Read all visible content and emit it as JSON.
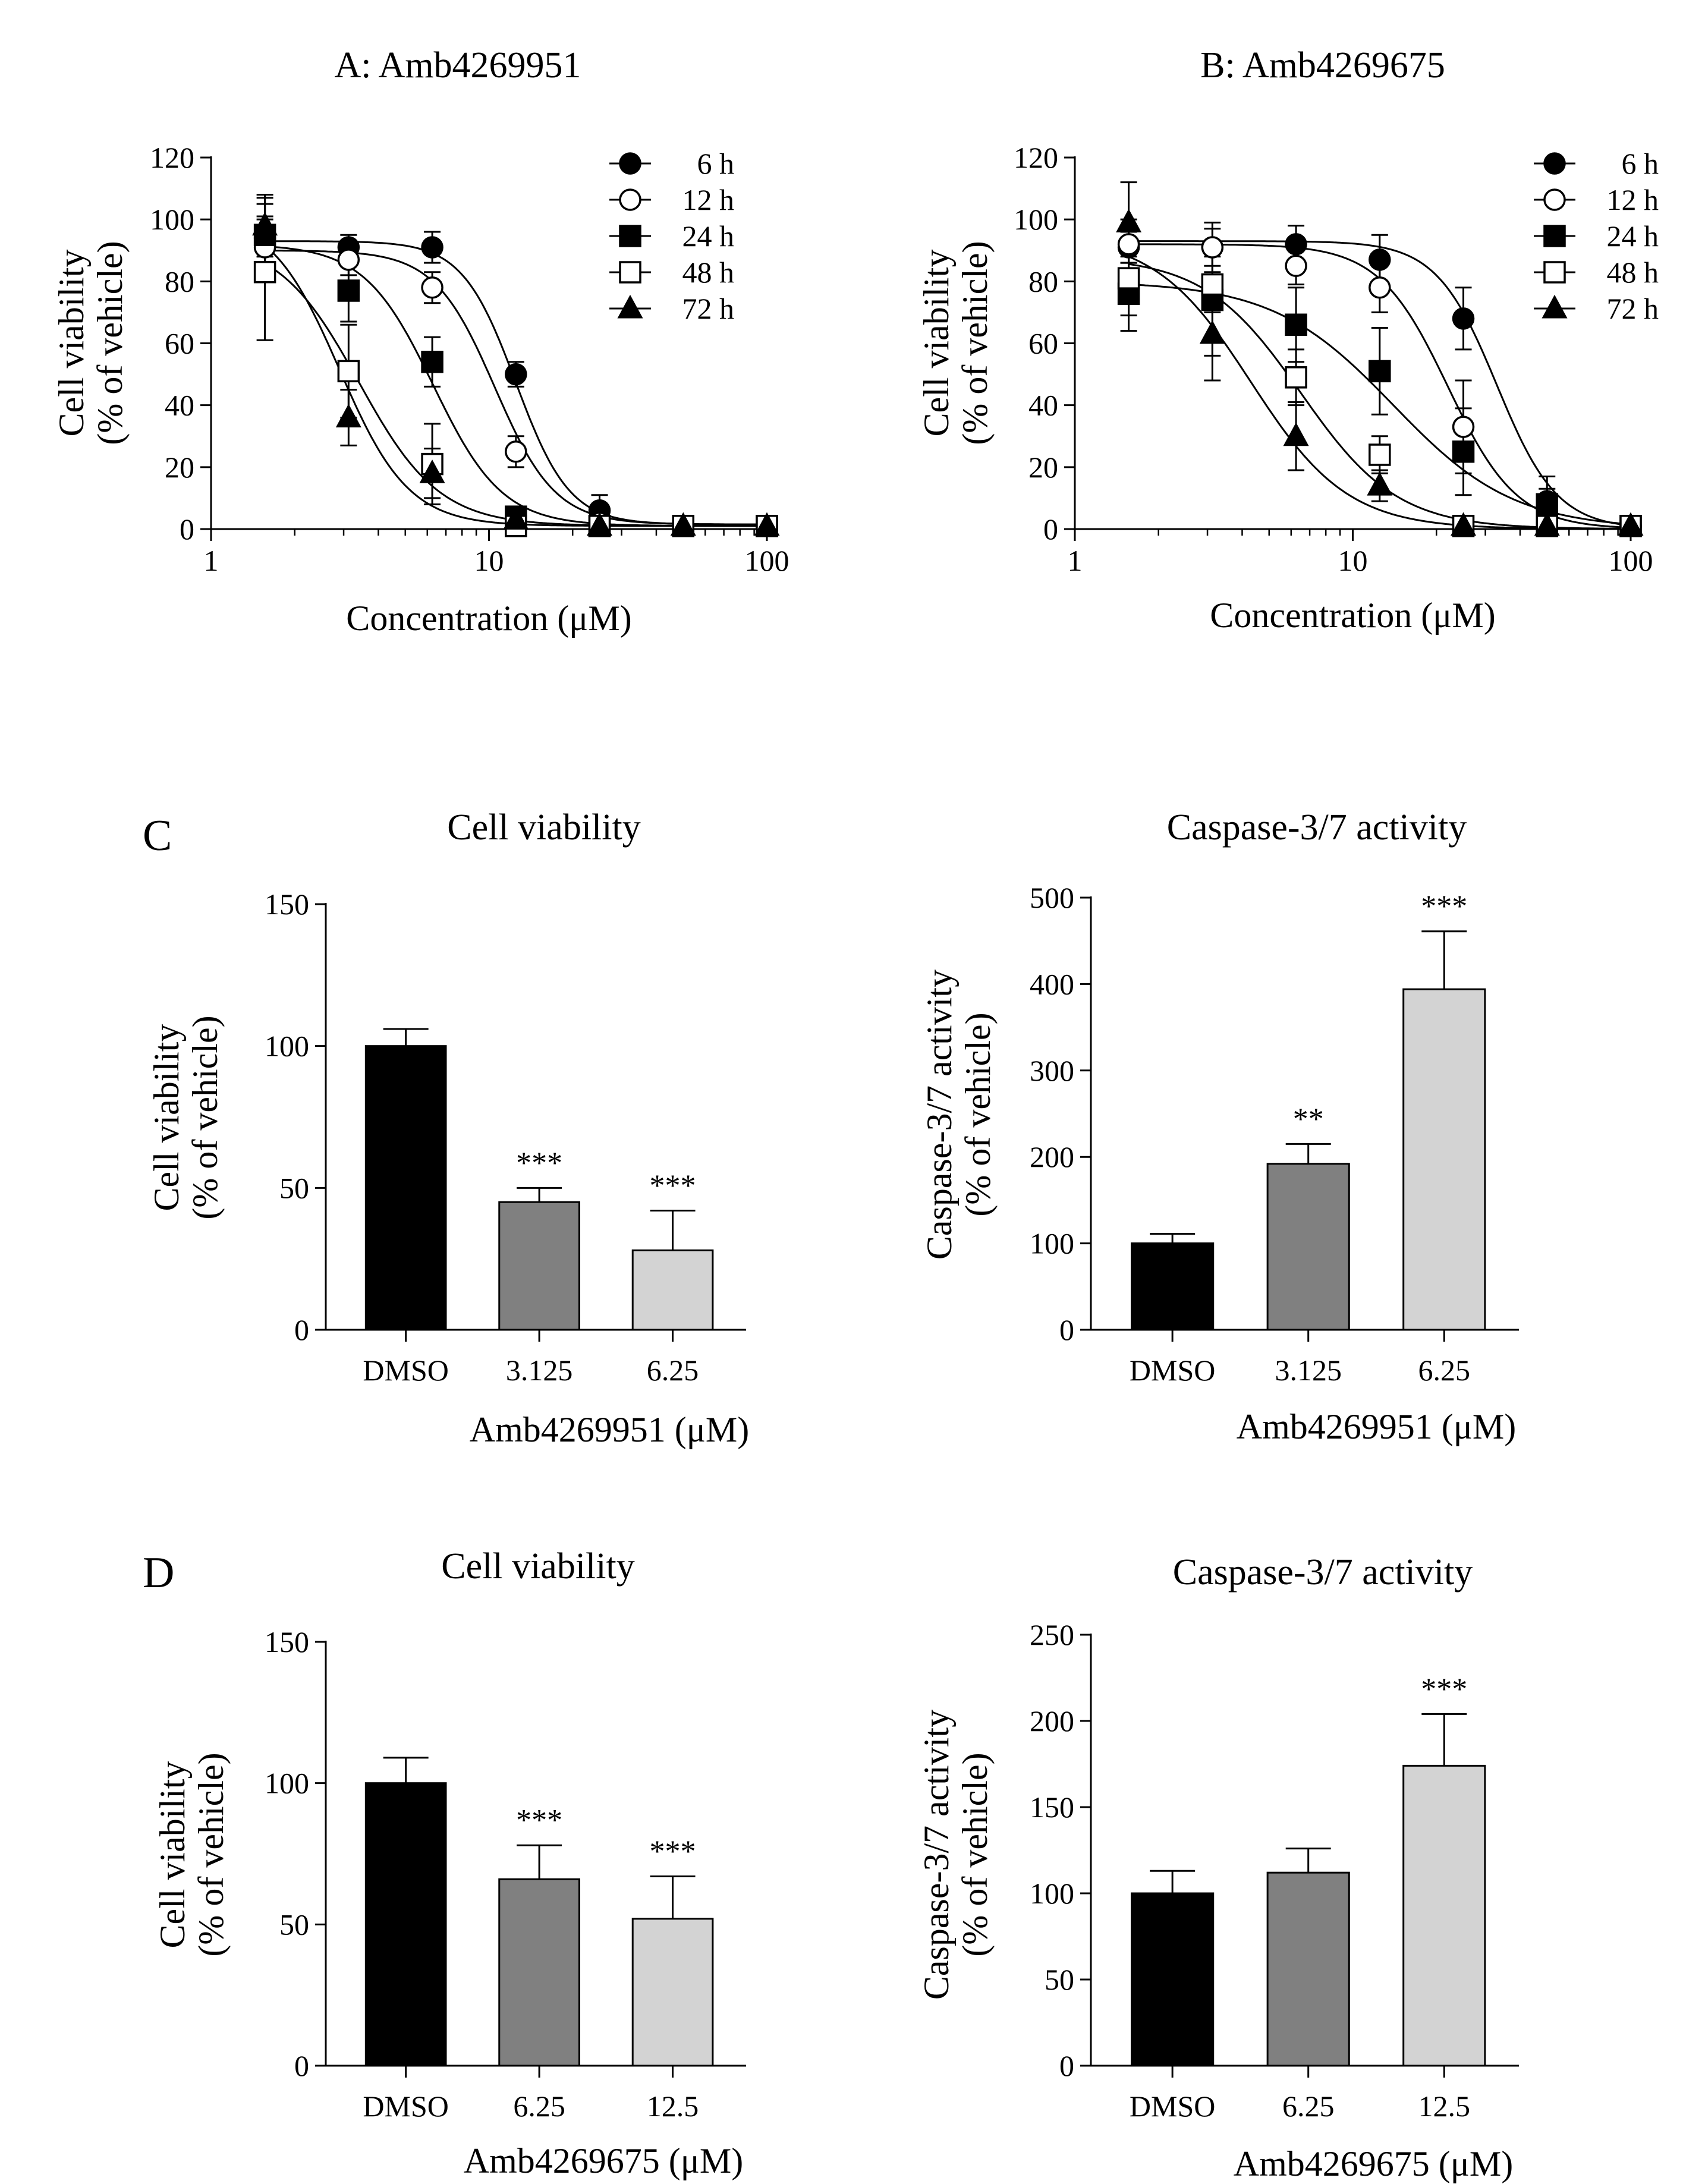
{
  "chart_data": [
    {
      "id": "A",
      "type": "line",
      "title": "A: Amb4269951",
      "xlabel": "Concentration (μM)",
      "ylabel": [
        "Cell viability",
        "(% of vehicle)"
      ],
      "xscale": "log",
      "xlim": [
        1,
        100
      ],
      "ylim": [
        0,
        120
      ],
      "xticks": [
        1,
        10,
        100
      ],
      "xtick_labels": [
        "1",
        "10",
        "100"
      ],
      "yticks": [
        0,
        20,
        40,
        60,
        80,
        100,
        120
      ],
      "ytick_labels": [
        "0",
        "20",
        "40",
        "60",
        "80",
        "100",
        "120"
      ],
      "legend_position": "top-right",
      "x": [
        1.5625,
        3.125,
        6.25,
        12.5,
        25,
        50,
        100
      ],
      "series": [
        {
          "name": "6 h",
          "marker": "filled-circle",
          "values": [
            94,
            91,
            91,
            50,
            6,
            1,
            1
          ],
          "errors": [
            6,
            4,
            5,
            4,
            5,
            1,
            1
          ],
          "fit": {
            "top": 93,
            "bottom": 1.5,
            "ic50": 12.5,
            "hill": 4.5
          }
        },
        {
          "name": "12 h",
          "marker": "open-circle",
          "values": [
            91,
            87,
            78,
            25,
            2,
            1,
            1
          ],
          "errors": [
            10,
            5,
            5,
            5,
            2,
            1,
            1
          ],
          "fit": {
            "top": 90,
            "bottom": 1.5,
            "ic50": 10.5,
            "hill": 4
          }
        },
        {
          "name": "24 h",
          "marker": "filled-square",
          "values": [
            95,
            77,
            54,
            4,
            1,
            1,
            1
          ],
          "errors": [
            12,
            10,
            8,
            3,
            1,
            1,
            1
          ],
          "fit": {
            "top": 92,
            "bottom": 1,
            "ic50": 6.3,
            "hill": 3.5
          }
        },
        {
          "name": "48 h",
          "marker": "open-square",
          "values": [
            83,
            51,
            21,
            1,
            1,
            1,
            1
          ],
          "errors": [
            22,
            15,
            13,
            1,
            1,
            1,
            1
          ],
          "fit": {
            "top": 94,
            "bottom": 1,
            "ic50": 3.4,
            "hill": 3
          }
        },
        {
          "name": "72 h",
          "marker": "filled-triangle",
          "values": [
            98,
            36,
            18,
            3,
            1,
            1,
            1
          ],
          "errors": [
            10,
            9,
            8,
            2,
            1,
            1,
            1
          ],
          "fit": {
            "top": 102,
            "bottom": 1,
            "ic50": 2.9,
            "hill": 3.5
          }
        }
      ]
    },
    {
      "id": "B",
      "type": "line",
      "title": "B: Amb4269675",
      "xlabel": "Concentration (μM)",
      "ylabel": [
        "Cell viability",
        "(% of vehicle)"
      ],
      "xscale": "log",
      "xlim": [
        1,
        100
      ],
      "ylim": [
        0,
        120
      ],
      "xticks": [
        1,
        10,
        100
      ],
      "xtick_labels": [
        "1",
        "10",
        "100"
      ],
      "yticks": [
        0,
        20,
        40,
        60,
        80,
        100,
        120
      ],
      "ytick_labels": [
        "0",
        "20",
        "40",
        "60",
        "80",
        "100",
        "120"
      ],
      "legend_position": "top-right",
      "x": [
        1.5625,
        3.125,
        6.25,
        12.5,
        25,
        50,
        100
      ],
      "series": [
        {
          "name": "6 h",
          "marker": "filled-circle",
          "values": [
            91,
            91,
            92,
            87,
            68,
            9,
            1
          ],
          "errors": [
            5,
            6,
            6,
            8,
            10,
            8,
            1
          ],
          "fit": {
            "top": 93,
            "bottom": 0,
            "ic50": 33,
            "hill": 4
          }
        },
        {
          "name": "12 h",
          "marker": "open-circle",
          "values": [
            92,
            91,
            85,
            78,
            33,
            1,
            1
          ],
          "errors": [
            8,
            8,
            6,
            8,
            15,
            2,
            1
          ],
          "fit": {
            "top": 92,
            "bottom": 0,
            "ic50": 22,
            "hill": 3.5
          }
        },
        {
          "name": "24 h",
          "marker": "filled-square",
          "values": [
            76,
            74,
            66,
            51,
            25,
            8,
            1
          ],
          "errors": [
            12,
            18,
            12,
            14,
            14,
            5,
            1
          ],
          "fit": {
            "top": 80,
            "bottom": 0,
            "ic50": 14,
            "hill": 2
          }
        },
        {
          "name": "48 h",
          "marker": "open-square",
          "values": [
            81,
            79,
            49,
            24,
            1,
            1,
            1
          ],
          "errors": [
            12,
            9,
            9,
            6,
            1,
            1,
            1
          ],
          "fit": {
            "top": 88,
            "bottom": 0,
            "ic50": 6.5,
            "hill": 2.5
          }
        },
        {
          "name": "72 h",
          "marker": "filled-triangle",
          "values": [
            99,
            63,
            30,
            14,
            1,
            1,
            1
          ],
          "errors": [
            13,
            15,
            11,
            5,
            1,
            1,
            1
          ],
          "fit": {
            "top": 95,
            "bottom": 0,
            "ic50": 4.3,
            "hill": 2.5
          }
        }
      ]
    },
    {
      "id": "C-left",
      "type": "bar",
      "panel_letter": "C",
      "title": "Cell viability",
      "xlabel": "Amb4269951 (μM)",
      "ylabel": [
        "Cell viability",
        "(% of vehicle)"
      ],
      "ylim": [
        0,
        150
      ],
      "yticks": [
        0,
        50,
        100,
        150
      ],
      "ytick_labels": [
        "0",
        "50",
        "100",
        "150"
      ],
      "categories": [
        "DMSO",
        "3.125",
        "6.25"
      ],
      "values": [
        100,
        45,
        28
      ],
      "errors": [
        6,
        5,
        14
      ],
      "bar_colors": [
        "#000000",
        "#808080",
        "#d3d3d3"
      ],
      "significance": [
        "",
        "***",
        "***"
      ]
    },
    {
      "id": "C-right",
      "type": "bar",
      "title": "Caspase-3/7 activity",
      "xlabel": "Amb4269951 (μM)",
      "ylabel": [
        "Caspase-3/7 activity",
        "(% of vehicle)"
      ],
      "ylim": [
        0,
        500
      ],
      "yticks": [
        0,
        100,
        200,
        300,
        400,
        500
      ],
      "ytick_labels": [
        "0",
        "100",
        "200",
        "300",
        "400",
        "500"
      ],
      "categories": [
        "DMSO",
        "3.125",
        "6.25"
      ],
      "values": [
        100,
        192,
        394
      ],
      "errors": [
        11,
        23,
        67
      ],
      "bar_colors": [
        "#000000",
        "#808080",
        "#d3d3d3"
      ],
      "significance": [
        "",
        "**",
        "***"
      ]
    },
    {
      "id": "D-left",
      "type": "bar",
      "panel_letter": "D",
      "title": "Cell viability",
      "xlabel": "Amb4269675 (μM)",
      "ylabel": [
        "Cell viability",
        "(% of vehicle)"
      ],
      "ylim": [
        0,
        150
      ],
      "yticks": [
        0,
        50,
        100,
        150
      ],
      "ytick_labels": [
        "0",
        "50",
        "100",
        "150"
      ],
      "categories": [
        "DMSO",
        "6.25",
        "12.5"
      ],
      "values": [
        100,
        66,
        52
      ],
      "errors": [
        9,
        12,
        15
      ],
      "bar_colors": [
        "#000000",
        "#808080",
        "#d3d3d3"
      ],
      "significance": [
        "",
        "***",
        "***"
      ]
    },
    {
      "id": "D-right",
      "type": "bar",
      "title": "Caspase-3/7 activity",
      "xlabel": "Amb4269675 (μM)",
      "ylabel": [
        "Caspase-3/7 activity",
        "(% of vehicle)"
      ],
      "ylim": [
        0,
        250
      ],
      "yticks": [
        0,
        50,
        100,
        150,
        200,
        250
      ],
      "ytick_labels": [
        "0",
        "50",
        "100",
        "150",
        "200",
        "250"
      ],
      "categories": [
        "DMSO",
        "6.25",
        "12.5"
      ],
      "values": [
        100,
        112,
        174
      ],
      "errors": [
        13,
        14,
        30
      ],
      "bar_colors": [
        "#000000",
        "#808080",
        "#d3d3d3"
      ],
      "significance": [
        "",
        "",
        "***"
      ]
    }
  ]
}
